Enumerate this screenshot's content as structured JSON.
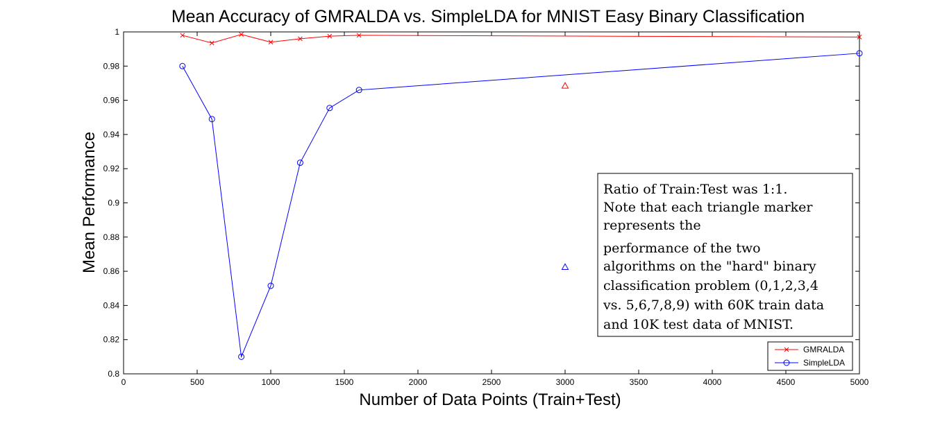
{
  "chart_data": {
    "type": "line",
    "title": "Mean Accuracy of GMRALDA vs. SimpleLDA for MNIST Easy Binary Classification",
    "xlabel": "Number of Data Points (Train+Test)",
    "ylabel": "Mean Performance",
    "xlim": [
      0,
      5000
    ],
    "ylim": [
      0.8,
      1
    ],
    "xticks": [
      0,
      500,
      1000,
      1500,
      2000,
      2500,
      3000,
      3500,
      4000,
      4500,
      5000
    ],
    "xtick_labels": [
      "0",
      "500",
      "1000",
      "1500",
      "2000",
      "2500",
      "3000",
      "3500",
      "4000",
      "4500",
      "5000"
    ],
    "yticks": [
      0.8,
      0.82,
      0.84,
      0.86,
      0.88,
      0.9,
      0.92,
      0.94,
      0.96,
      0.98,
      1
    ],
    "ytick_labels": [
      "0.8",
      "0.82",
      "0.84",
      "0.86",
      "0.88",
      "0.9",
      "0.92",
      "0.94",
      "0.96",
      "0.98",
      "1"
    ],
    "grid": false,
    "legend_position": "bottom-right",
    "series": [
      {
        "name": "GMRALDA",
        "color": "#ff0000",
        "marker": "x",
        "x": [
          400,
          600,
          800,
          1000,
          1200,
          1400,
          1600,
          5000
        ],
        "y": [
          0.998,
          0.9935,
          0.9985,
          0.994,
          0.996,
          0.9975,
          0.998,
          0.997
        ]
      },
      {
        "name": "SimpleLDA",
        "color": "#0000ff",
        "marker": "o",
        "x": [
          400,
          600,
          800,
          1000,
          1200,
          1400,
          1600,
          5000
        ],
        "y": [
          0.98,
          0.949,
          0.81,
          0.8515,
          0.9235,
          0.9555,
          0.966,
          0.9875
        ]
      }
    ],
    "extra_points": [
      {
        "color": "#ff0000",
        "marker": "triangle",
        "x": 3000,
        "y": 0.9685
      },
      {
        "color": "#0000ff",
        "marker": "triangle",
        "x": 3000,
        "y": 0.8625
      }
    ],
    "annotation": {
      "lines": [
        "Ratio of Train:Test was 1:1.",
        "Note that each triangle marker",
        "represents the",
        "performance of the two",
        "algorithms on the \"hard\" binary",
        "classification problem (0,1,2,3,4",
        "vs. 5,6,7,8,9) with 60K train data",
        "and 10K test data of MNIST."
      ]
    }
  }
}
